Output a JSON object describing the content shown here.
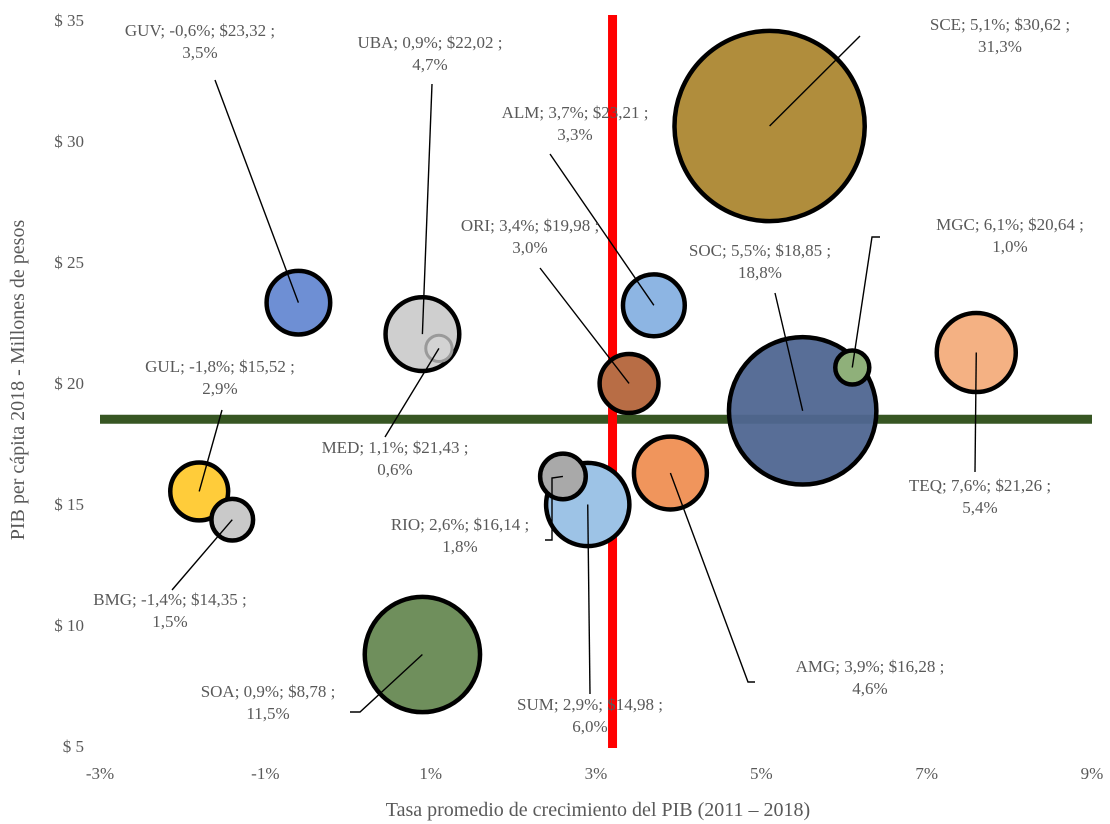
{
  "chart_data": {
    "type": "scatter",
    "variant": "bubble",
    "title": "",
    "xlabel": "Tasa promedio de crecimiento del PIB (2011 – 2018)",
    "ylabel": "PIB per cápita 2018 - Millones de pesos",
    "xlim": [
      -3,
      9
    ],
    "ylim": [
      5,
      35
    ],
    "x_ticks": [
      -3,
      -1,
      1,
      3,
      5,
      7,
      9
    ],
    "x_tick_labels": [
      "-3%",
      "-1%",
      "1%",
      "3%",
      "5%",
      "7%",
      "9%"
    ],
    "y_ticks": [
      5,
      10,
      15,
      20,
      25,
      30,
      35
    ],
    "y_tick_labels": [
      "$ 5",
      "$ 10",
      "$ 15",
      "$ 20",
      "$ 25",
      "$ 30",
      "$ 35"
    ],
    "grid": false,
    "legend": "none",
    "reference_lines": {
      "vertical_x": 3.2,
      "vertical_color": "#ff0000",
      "horizontal_y": 18.5,
      "horizontal_color": "#375623"
    },
    "points": [
      {
        "name": "GUV",
        "x": -0.6,
        "y": 23.32,
        "size": 3.5,
        "color": "#6e8fd4",
        "label": [
          "GUV; -0,6%;  $23,32 ;",
          "3,5%"
        ]
      },
      {
        "name": "UBA",
        "x": 0.9,
        "y": 22.02,
        "size": 4.7,
        "color": "#cfcfcf",
        "label": [
          "UBA; 0,9%;  $22,02 ;",
          "4,7%"
        ]
      },
      {
        "name": "ALM",
        "x": 3.7,
        "y": 23.21,
        "size": 3.3,
        "color": "#8db5e3",
        "label": [
          "ALM; 3,7%;  $23,21 ;",
          "3,3%"
        ]
      },
      {
        "name": "SCE",
        "x": 5.1,
        "y": 30.62,
        "size": 31.3,
        "color": "#b08d3c",
        "label": [
          "SCE; 5,1%;  $30,62 ;",
          "31,3%"
        ]
      },
      {
        "name": "MGC",
        "x": 6.1,
        "y": 20.64,
        "size": 1.0,
        "color": "#8fb07a",
        "label": [
          "MGC; 6,1%;  $20,64 ;",
          "1,0%"
        ]
      },
      {
        "name": "ORI",
        "x": 3.4,
        "y": 19.98,
        "size": 3.0,
        "color": "#b86d45",
        "label": [
          "ORI; 3,4%;  $19,98 ;",
          "3,0%"
        ]
      },
      {
        "name": "SOC",
        "x": 5.5,
        "y": 18.85,
        "size": 18.8,
        "color": "#4f6691",
        "label": [
          "SOC; 5,5%;  $18,85 ;",
          "18,8%"
        ]
      },
      {
        "name": "GUL",
        "x": -1.8,
        "y": 15.52,
        "size": 2.9,
        "color": "#ffcc3a",
        "label": [
          "GUL; -1,8%;  $15,52 ;",
          "2,9%"
        ]
      },
      {
        "name": "MED",
        "x": 1.1,
        "y": 21.43,
        "size": 0.6,
        "color": "#d3d3d3",
        "label": [
          "MED; 1,1%;  $21,43 ;",
          "0,6%"
        ]
      },
      {
        "name": "TEQ",
        "x": 7.6,
        "y": 21.26,
        "size": 5.4,
        "color": "#f4b183",
        "label": [
          "TEQ; 7,6%;  $21,26 ;",
          "5,4%"
        ]
      },
      {
        "name": "RIO",
        "x": 2.6,
        "y": 16.14,
        "size": 1.8,
        "color": "#a9a9a9",
        "label": [
          "RIO; 2,6%;  $16,14 ;",
          "1,8%"
        ]
      },
      {
        "name": "BMG",
        "x": -1.4,
        "y": 14.35,
        "size": 1.5,
        "color": "#c9c9c9",
        "label": [
          "BMG; -1,4%;  $14,35 ;",
          "1,5%"
        ]
      },
      {
        "name": "SUM",
        "x": 2.9,
        "y": 14.98,
        "size": 6.0,
        "color": "#9dc3e6",
        "label": [
          "SUM; 2,9%;  $14,98 ;",
          "6,0%"
        ]
      },
      {
        "name": "AMG",
        "x": 3.9,
        "y": 16.28,
        "size": 4.6,
        "color": "#f0955c",
        "label": [
          "AMG; 3,9%;  $16,28 ;",
          "4,6%"
        ]
      },
      {
        "name": "SOA",
        "x": 0.9,
        "y": 8.78,
        "size": 11.5,
        "color": "#6f8f5c",
        "label": [
          "SOA; 0,9%;  $8,78 ;",
          "11,5%"
        ]
      }
    ]
  }
}
